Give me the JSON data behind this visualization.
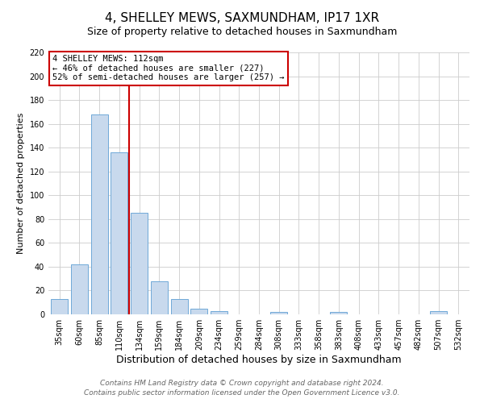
{
  "title": "4, SHELLEY MEWS, SAXMUNDHAM, IP17 1XR",
  "subtitle": "Size of property relative to detached houses in Saxmundham",
  "xlabel": "Distribution of detached houses by size in Saxmundham",
  "ylabel": "Number of detached properties",
  "bar_labels": [
    "35sqm",
    "60sqm",
    "85sqm",
    "110sqm",
    "134sqm",
    "159sqm",
    "184sqm",
    "209sqm",
    "234sqm",
    "259sqm",
    "284sqm",
    "308sqm",
    "333sqm",
    "358sqm",
    "383sqm",
    "408sqm",
    "433sqm",
    "457sqm",
    "482sqm",
    "507sqm",
    "532sqm"
  ],
  "bar_values": [
    13,
    42,
    168,
    136,
    85,
    28,
    13,
    5,
    3,
    0,
    0,
    2,
    0,
    0,
    2,
    0,
    0,
    0,
    0,
    3,
    0
  ],
  "bar_color": "#c8d9ed",
  "bar_edge_color": "#6fa8d8",
  "ylim": [
    0,
    220
  ],
  "yticks": [
    0,
    20,
    40,
    60,
    80,
    100,
    120,
    140,
    160,
    180,
    200,
    220
  ],
  "vline_color": "#cc0000",
  "annotation_title": "4 SHELLEY MEWS: 112sqm",
  "annotation_line1": "← 46% of detached houses are smaller (227)",
  "annotation_line2": "52% of semi-detached houses are larger (257) →",
  "annotation_box_color": "#ffffff",
  "annotation_box_edgecolor": "#cc0000",
  "footer_line1": "Contains HM Land Registry data © Crown copyright and database right 2024.",
  "footer_line2": "Contains public sector information licensed under the Open Government Licence v3.0.",
  "title_fontsize": 11,
  "subtitle_fontsize": 9,
  "xlabel_fontsize": 9,
  "ylabel_fontsize": 8,
  "tick_fontsize": 7,
  "annotation_fontsize": 7.5,
  "footer_fontsize": 6.5
}
